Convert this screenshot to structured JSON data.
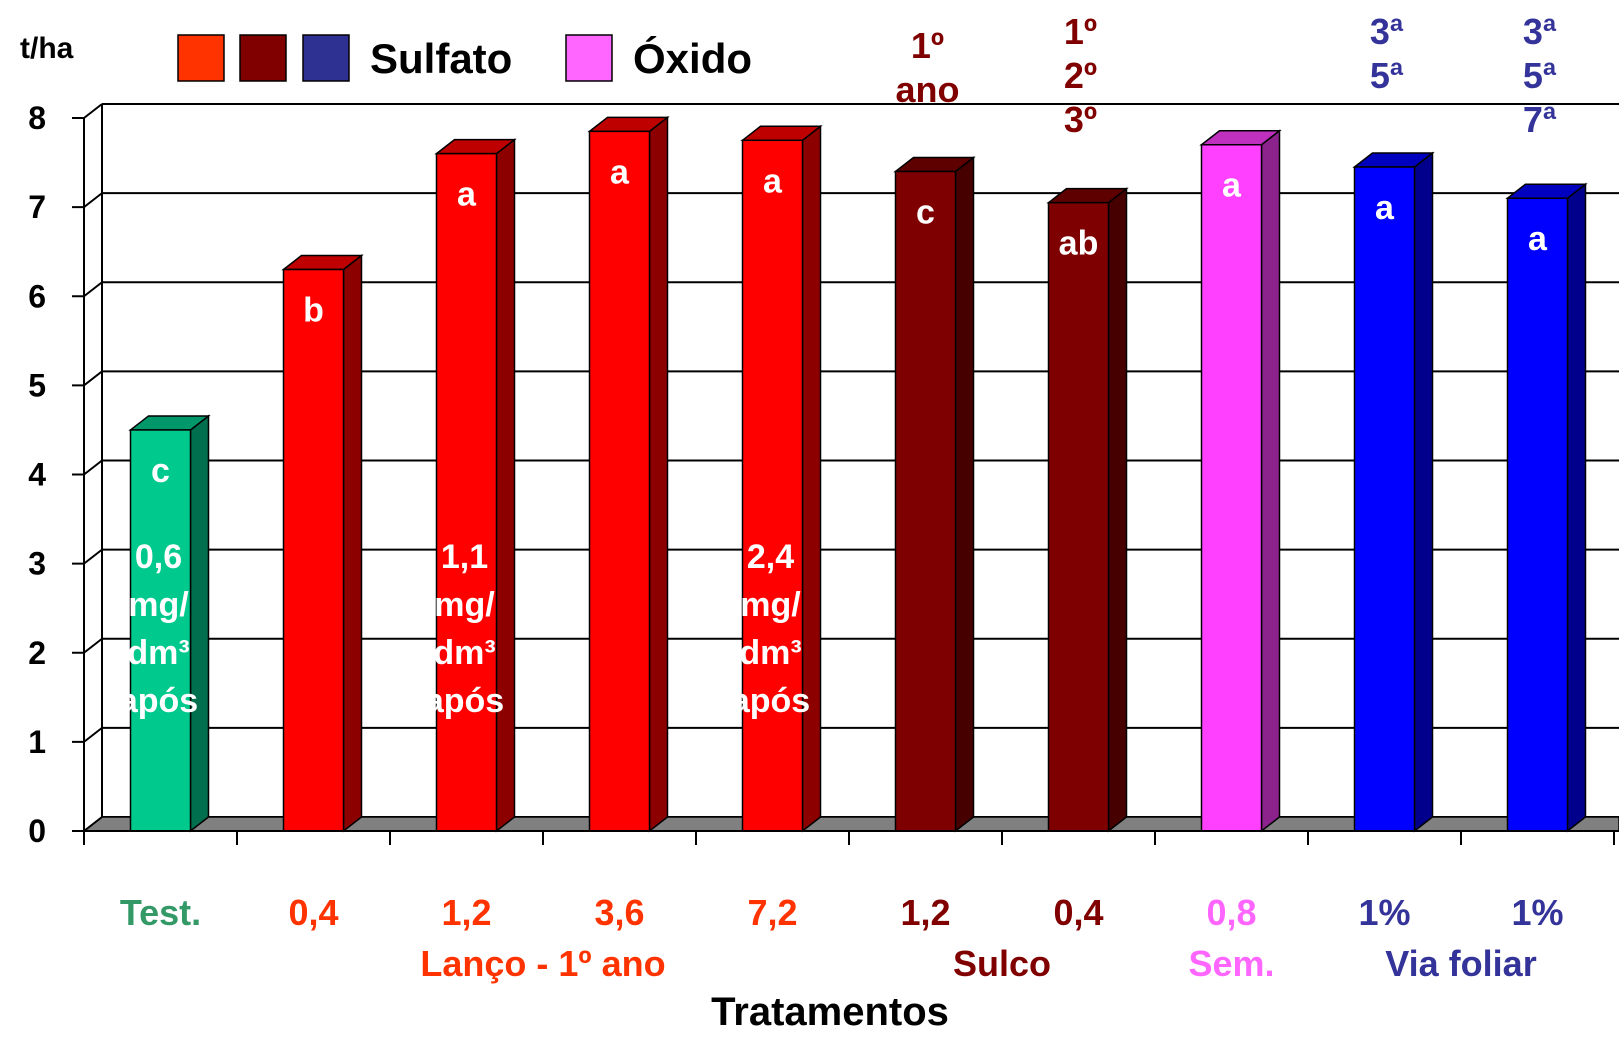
{
  "colors": {
    "testemunha": "#00C98E",
    "lanco": "#FF0000",
    "sulco": "#7F0000",
    "oxido": "#FF40FF",
    "foliar": "#0000FF",
    "legend_red": "#FF3300",
    "legend_darkred": "#800000",
    "legend_blue": "#2E3192",
    "label_green": "#339966",
    "label_orange": "#FF3300",
    "label_darkred": "#800000",
    "label_pink": "#FF66FF",
    "label_blue": "#333399",
    "floor": "#808080",
    "bottom_bar": "#FFFFCC"
  },
  "legend": {
    "sulfato_label": "Sulfato",
    "oxido_label": "Óxido"
  },
  "chart_data": {
    "type": "bar",
    "ylabel": "t/ha",
    "xlabel": "Tratamentos",
    "ylim": [
      0,
      8
    ],
    "yticks": [
      "0",
      "1",
      "2",
      "3",
      "4",
      "5",
      "6",
      "7",
      "8"
    ],
    "grid": true,
    "categories": [
      "Test.",
      "0,4",
      "1,2",
      "3,6",
      "7,2",
      "1,2",
      "0,4",
      "0,8",
      "1%",
      "1%"
    ],
    "values": [
      4.5,
      6.3,
      7.6,
      7.85,
      7.75,
      7.4,
      7.05,
      7.7,
      7.45,
      7.1
    ],
    "letters": [
      "c",
      "b",
      "a",
      "a",
      "a",
      "c",
      "ab",
      "a",
      "a",
      "a"
    ],
    "bar_groups": [
      "testemunha",
      "lanco",
      "lanco",
      "lanco",
      "lanco",
      "sulco",
      "sulco",
      "oxido",
      "foliar",
      "foliar"
    ],
    "bar_notes": [
      {
        "bar": 0,
        "lines": [
          "0,6",
          "mg/",
          "dm³",
          "após"
        ]
      },
      {
        "bar": 2,
        "lines": [
          "1,1",
          "mg/",
          "dm³",
          "após"
        ]
      },
      {
        "bar": 4,
        "lines": [
          "2,4",
          "mg/",
          "dm³",
          "após"
        ]
      }
    ],
    "group_labels": [
      {
        "text": "Lanço - 1º ano",
        "group": "lanco"
      },
      {
        "text": "Sulco",
        "group": "sulco"
      },
      {
        "text": "Sem.",
        "group": "oxido"
      },
      {
        "text": "Via foliar",
        "group": "foliar"
      }
    ],
    "timing_annotations": [
      {
        "bar": 5,
        "lines": [
          "1º",
          "ano"
        ],
        "color_key": "label_darkred"
      },
      {
        "bar": 6,
        "lines": [
          "1º",
          "2º",
          "3º"
        ],
        "color_key": "label_darkred"
      },
      {
        "bar": 8,
        "lines": [
          "3ª",
          "5ª"
        ],
        "color_key": "label_blue"
      },
      {
        "bar": 9,
        "lines": [
          "3ª",
          "5ª",
          "7ª"
        ],
        "color_key": "label_blue"
      }
    ]
  }
}
